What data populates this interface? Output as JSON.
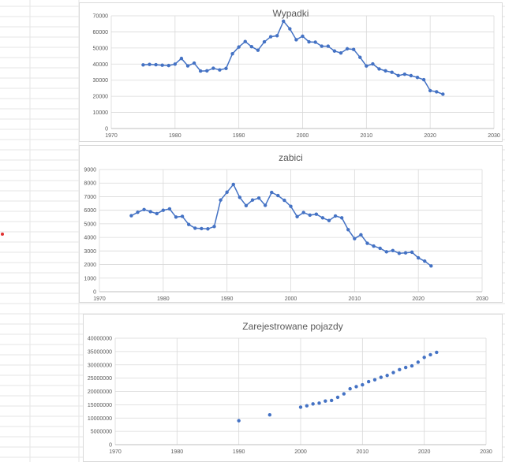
{
  "chart_data": [
    {
      "type": "scatter",
      "title": "Wypadki",
      "xlim": [
        1970,
        2030
      ],
      "ylim": [
        0,
        70000
      ],
      "x_ticks": [
        1970,
        1980,
        1990,
        2000,
        2010,
        2020,
        2030
      ],
      "y_ticks": [
        0,
        10000,
        20000,
        30000,
        40000,
        50000,
        60000,
        70000
      ],
      "grid": true,
      "color": "#4472c4",
      "lines": true,
      "points": [
        [
          1975,
          39500
        ],
        [
          1976,
          39800
        ],
        [
          1977,
          39600
        ],
        [
          1978,
          39300
        ],
        [
          1979,
          39100
        ],
        [
          1980,
          40000
        ],
        [
          1981,
          43500
        ],
        [
          1982,
          38900
        ],
        [
          1983,
          40600
        ],
        [
          1984,
          35700
        ],
        [
          1985,
          35800
        ],
        [
          1986,
          37400
        ],
        [
          1987,
          36400
        ],
        [
          1988,
          37300
        ],
        [
          1989,
          46400
        ],
        [
          1990,
          50600
        ],
        [
          1991,
          54000
        ],
        [
          1992,
          50800
        ],
        [
          1993,
          48600
        ],
        [
          1994,
          53800
        ],
        [
          1995,
          57000
        ],
        [
          1996,
          57600
        ],
        [
          1997,
          66600
        ],
        [
          1998,
          61900
        ],
        [
          1999,
          55100
        ],
        [
          2000,
          57300
        ],
        [
          2001,
          53800
        ],
        [
          2002,
          53600
        ],
        [
          2003,
          51100
        ],
        [
          2004,
          51100
        ],
        [
          2005,
          48100
        ],
        [
          2006,
          46900
        ],
        [
          2007,
          49500
        ],
        [
          2008,
          49100
        ],
        [
          2009,
          44200
        ],
        [
          2010,
          38800
        ],
        [
          2011,
          40100
        ],
        [
          2012,
          37000
        ],
        [
          2013,
          35800
        ],
        [
          2014,
          34900
        ],
        [
          2015,
          32900
        ],
        [
          2016,
          33700
        ],
        [
          2017,
          32800
        ],
        [
          2018,
          31700
        ],
        [
          2019,
          30300
        ],
        [
          2020,
          23500
        ],
        [
          2021,
          22800
        ],
        [
          2022,
          21300
        ]
      ]
    },
    {
      "type": "scatter",
      "title": "zabici",
      "xlim": [
        1970,
        2030
      ],
      "ylim": [
        0,
        9000
      ],
      "x_ticks": [
        1970,
        1980,
        1990,
        2000,
        2010,
        2020,
        2030
      ],
      "y_ticks": [
        0,
        1000,
        2000,
        3000,
        4000,
        5000,
        6000,
        7000,
        8000,
        9000
      ],
      "grid": true,
      "color": "#4472c4",
      "lines": true,
      "points": [
        [
          1975,
          5600
        ],
        [
          1976,
          5850
        ],
        [
          1977,
          6050
        ],
        [
          1978,
          5900
        ],
        [
          1979,
          5750
        ],
        [
          1980,
          6000
        ],
        [
          1981,
          6100
        ],
        [
          1982,
          5500
        ],
        [
          1983,
          5550
        ],
        [
          1984,
          4950
        ],
        [
          1985,
          4680
        ],
        [
          1986,
          4650
        ],
        [
          1987,
          4630
        ],
        [
          1988,
          4800
        ],
        [
          1989,
          6750
        ],
        [
          1990,
          7330
        ],
        [
          1991,
          7900
        ],
        [
          1992,
          6950
        ],
        [
          1993,
          6340
        ],
        [
          1994,
          6750
        ],
        [
          1995,
          6900
        ],
        [
          1996,
          6360
        ],
        [
          1997,
          7310
        ],
        [
          1998,
          7080
        ],
        [
          1999,
          6730
        ],
        [
          2000,
          6290
        ],
        [
          2001,
          5530
        ],
        [
          2002,
          5830
        ],
        [
          2003,
          5640
        ],
        [
          2004,
          5710
        ],
        [
          2005,
          5440
        ],
        [
          2006,
          5240
        ],
        [
          2007,
          5580
        ],
        [
          2008,
          5440
        ],
        [
          2009,
          4570
        ],
        [
          2010,
          3910
        ],
        [
          2011,
          4190
        ],
        [
          2012,
          3570
        ],
        [
          2013,
          3360
        ],
        [
          2014,
          3200
        ],
        [
          2015,
          2940
        ],
        [
          2016,
          3030
        ],
        [
          2017,
          2830
        ],
        [
          2018,
          2860
        ],
        [
          2019,
          2910
        ],
        [
          2020,
          2490
        ],
        [
          2021,
          2250
        ],
        [
          2022,
          1900
        ]
      ]
    },
    {
      "type": "scatter",
      "title": "Zarejestrowane pojazdy",
      "xlim": [
        1970,
        2030
      ],
      "ylim": [
        0,
        40000000
      ],
      "x_ticks": [
        1970,
        1980,
        1990,
        2000,
        2010,
        2020,
        2030
      ],
      "y_ticks": [
        0,
        5000000,
        10000000,
        15000000,
        20000000,
        25000000,
        30000000,
        35000000,
        40000000
      ],
      "grid": true,
      "color": "#4472c4",
      "lines": false,
      "points": [
        [
          1990,
          9000000
        ],
        [
          1995,
          11200000
        ],
        [
          2000,
          14100000
        ],
        [
          2001,
          14600000
        ],
        [
          2002,
          15300000
        ],
        [
          2003,
          15600000
        ],
        [
          2004,
          16400000
        ],
        [
          2005,
          16600000
        ],
        [
          2006,
          17800000
        ],
        [
          2007,
          19100000
        ],
        [
          2008,
          21000000
        ],
        [
          2009,
          21800000
        ],
        [
          2010,
          22500000
        ],
        [
          2011,
          23700000
        ],
        [
          2012,
          24400000
        ],
        [
          2013,
          25300000
        ],
        [
          2014,
          26000000
        ],
        [
          2015,
          27100000
        ],
        [
          2016,
          28200000
        ],
        [
          2017,
          29000000
        ],
        [
          2018,
          29600000
        ],
        [
          2019,
          31000000
        ],
        [
          2020,
          32800000
        ],
        [
          2021,
          33800000
        ],
        [
          2022,
          34700000
        ]
      ]
    }
  ]
}
